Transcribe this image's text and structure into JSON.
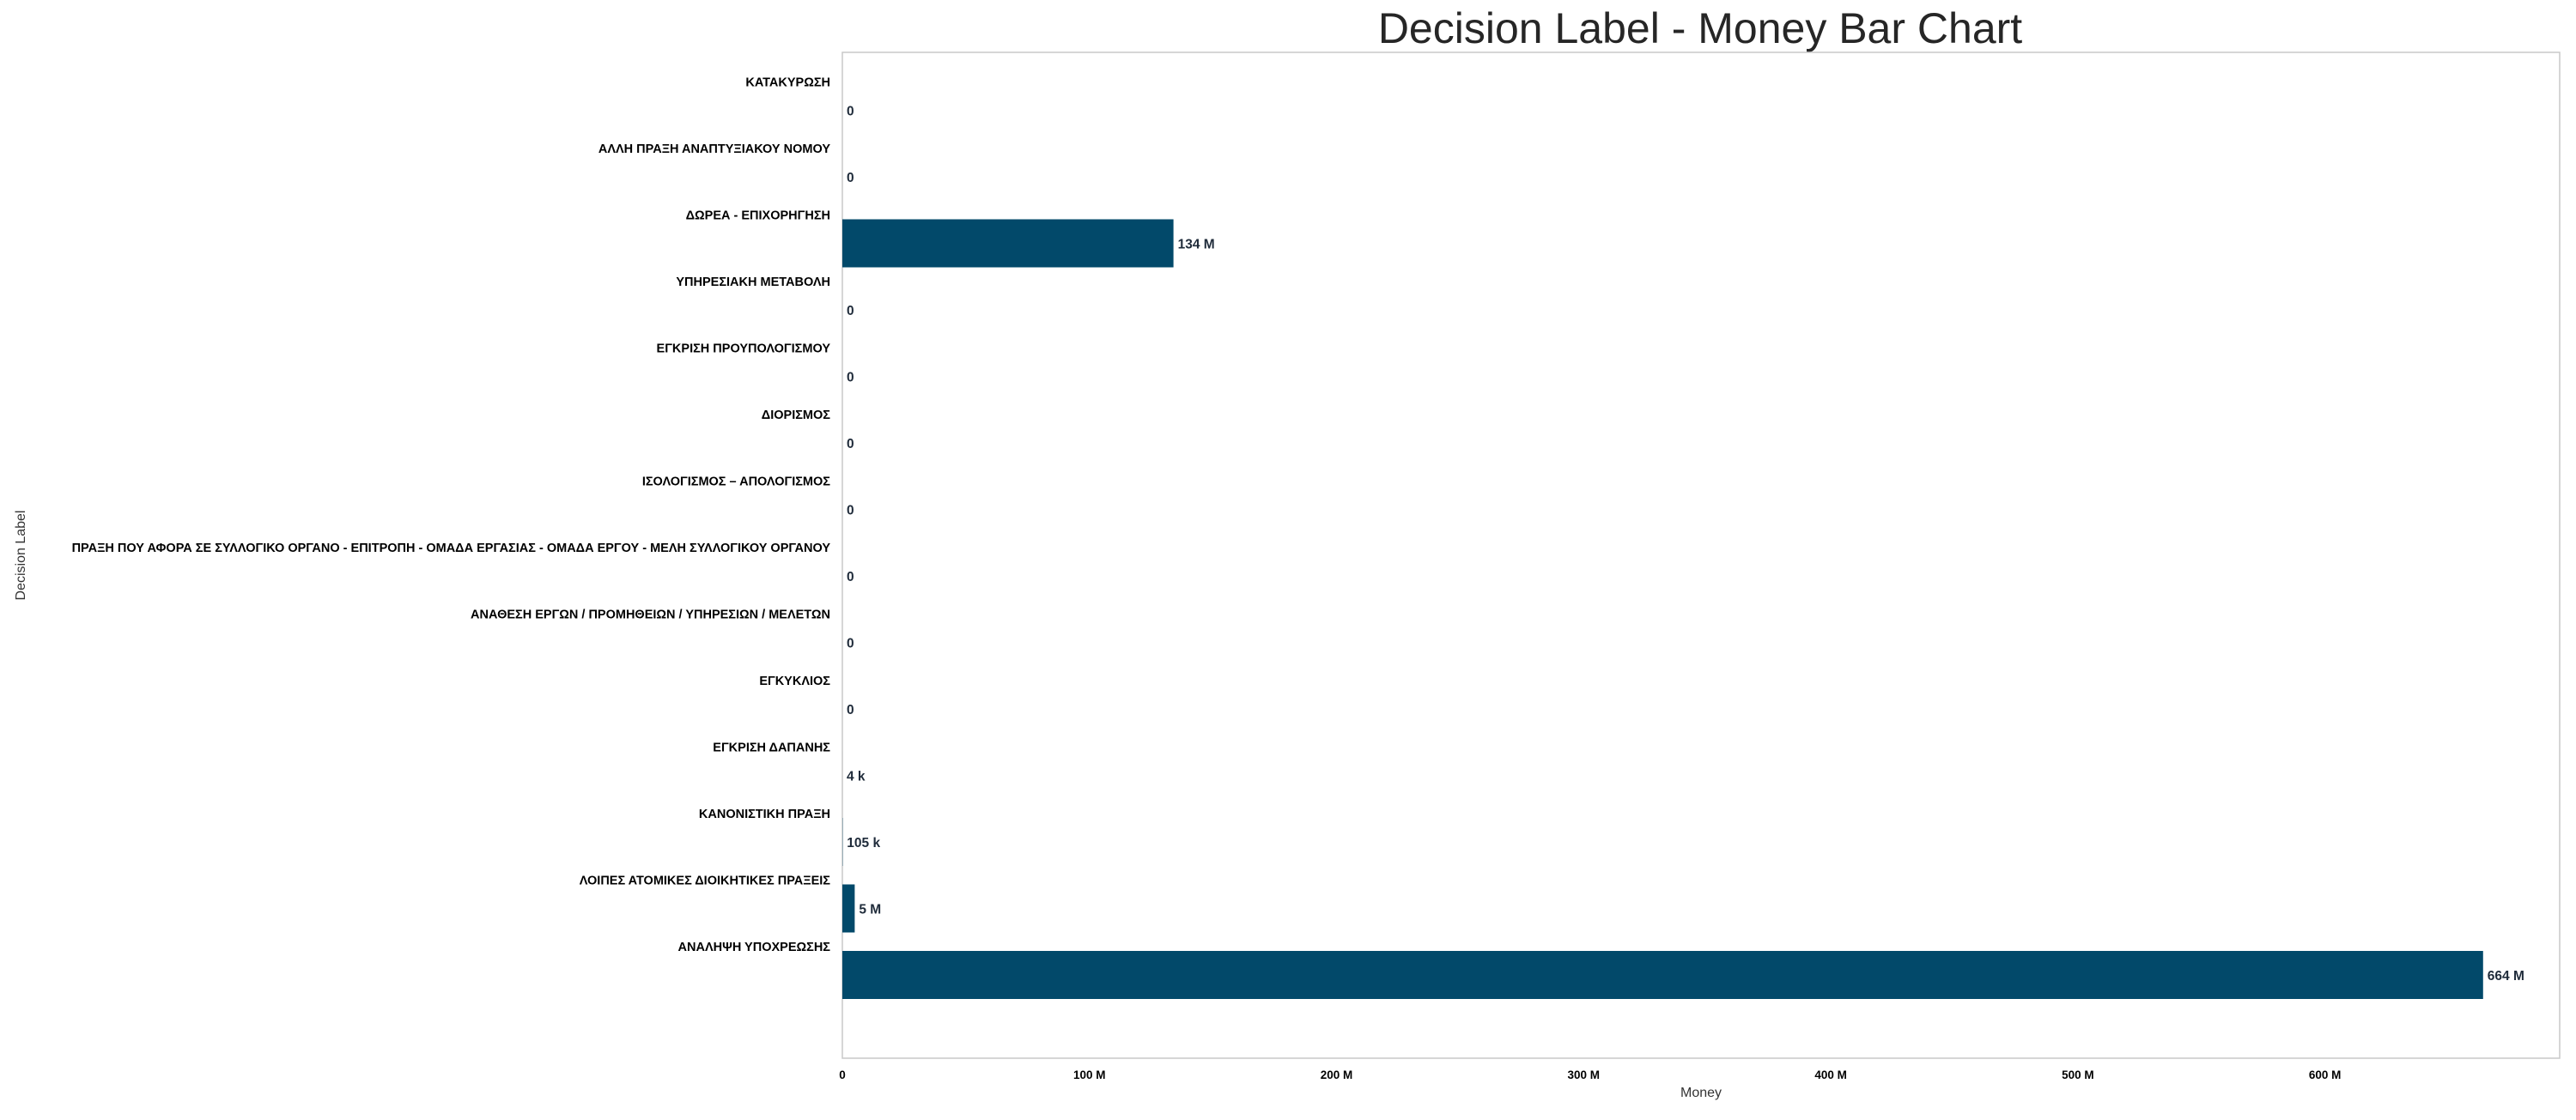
{
  "chart_data": {
    "type": "bar",
    "orientation": "horizontal",
    "title": "Decision Label - Money Bar Chart",
    "xlabel": "Money",
    "ylabel": "Decision Label",
    "xlim": [
      0,
      695000000
    ],
    "grid": false,
    "bar_color": "#02496a",
    "categories": [
      "ΚΑΤΑΚΥΡΩΣΗ",
      "ΑΛΛΗ ΠΡΑΞΗ ΑΝΑΠΤΥΞΙΑΚΟΥ ΝΟΜΟΥ",
      "ΔΩΡΕΑ - ΕΠΙΧΟΡΗΓΗΣΗ",
      "ΥΠΗΡΕΣΙΑΚΗ ΜΕΤΑΒΟΛΗ",
      "ΕΓΚΡΙΣΗ ΠΡΟΥΠΟΛΟΓΙΣΜΟΥ",
      "ΔΙΟΡΙΣΜΟΣ",
      "ΙΣΟΛΟΓΙΣΜΟΣ – ΑΠΟΛΟΓΙΣΜΟΣ",
      "ΠΡΑΞΗ ΠΟΥ ΑΦΟΡΑ ΣΕ ΣΥΛΛΟΓΙΚΟ ΟΡΓΑΝΟ - ΕΠΙΤΡΟΠΗ - ΟΜΑΔΑ ΕΡΓΑΣΙΑΣ - ΟΜΑΔΑ ΕΡΓΟΥ - ΜΕΛΗ ΣΥΛΛΟΓΙΚΟΥ ΟΡΓΑΝΟΥ",
      "ΑΝΑΘΕΣΗ ΕΡΓΩΝ / ΠΡΟΜΗΘΕΙΩΝ / ΥΠΗΡΕΣΙΩΝ / ΜΕΛΕΤΩΝ",
      "ΕΓΚΥΚΛΙΟΣ",
      "ΕΓΚΡΙΣΗ ΔΑΠΑΝΗΣ",
      "ΚΑΝΟΝΙΣΤΙΚΗ ΠΡΑΞΗ",
      "ΛΟΙΠΕΣ ΑΤΟΜΙΚΕΣ ΔΙΟΙΚΗΤΙΚΕΣ ΠΡΑΞΕΙΣ",
      "ΑΝΑΛΗΨΗ ΥΠΟΧΡΕΩΣΗΣ"
    ],
    "values": [
      0,
      0,
      134000000,
      0,
      0,
      0,
      0,
      0,
      0,
      0,
      4000,
      105000,
      5000000,
      664000000
    ],
    "value_labels": [
      "0",
      "0",
      "134 M",
      "0",
      "0",
      "0",
      "0",
      "0",
      "0",
      "0",
      "4 k",
      "105 k",
      "5 M",
      "664 M"
    ],
    "x_ticks": [
      {
        "value": 0,
        "label": "0"
      },
      {
        "value": 100000000,
        "label": "100 M"
      },
      {
        "value": 200000000,
        "label": "200 M"
      },
      {
        "value": 300000000,
        "label": "300 M"
      },
      {
        "value": 400000000,
        "label": "400 M"
      },
      {
        "value": 500000000,
        "label": "500 M"
      },
      {
        "value": 600000000,
        "label": "600 M"
      }
    ]
  }
}
